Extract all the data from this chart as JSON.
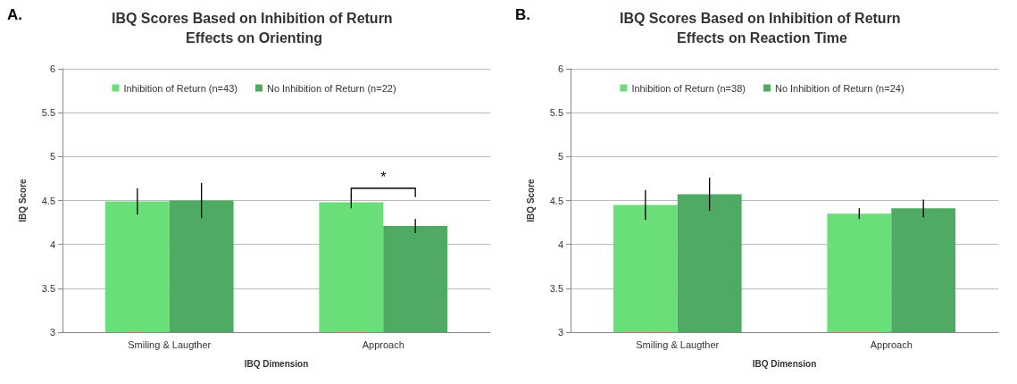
{
  "chart_data": [
    {
      "type": "bar",
      "title": "IBQ Scores Based on Inhibition of Return Effects on Orienting",
      "xlabel": "IBQ Dimension",
      "ylabel": "IBQ Score",
      "categories": [
        "Smiling & Laugther",
        "Approach"
      ],
      "series": [
        {
          "name": "Inhibition of Return (n=43)",
          "color": "#6ade78",
          "values": [
            4.49,
            4.48
          ],
          "errors": [
            0.15,
            0.07
          ]
        },
        {
          "name": "No Inhibition of Return (n=22)",
          "color": "#4fab63",
          "values": [
            4.5,
            4.21
          ],
          "errors": [
            0.2,
            0.08
          ]
        }
      ],
      "ylim": [
        3,
        6
      ],
      "yticks": [
        3,
        3.5,
        4,
        4.5,
        5,
        5.5,
        6
      ],
      "grid": "y",
      "legend": "top",
      "annotations": [
        "A.",
        "*"
      ]
    },
    {
      "type": "bar",
      "title": "IBQ Scores Based on Inhibition of Return Effects on Reaction Time",
      "xlabel": "IBQ Dimension",
      "ylabel": "IBQ Score",
      "categories": [
        "Smiling & Laugther",
        "Approach"
      ],
      "series": [
        {
          "name": "Inhibition of Return (n=38)",
          "color": "#6ade78",
          "values": [
            4.45,
            4.35
          ],
          "errors": [
            0.17,
            0.06
          ]
        },
        {
          "name": "No Inhibition of Return (n=24)",
          "color": "#4fab63",
          "values": [
            4.57,
            4.41
          ],
          "errors": [
            0.19,
            0.1
          ]
        }
      ],
      "ylim": [
        3,
        6
      ],
      "yticks": [
        3,
        3.5,
        4,
        4.5,
        5,
        5.5,
        6
      ],
      "grid": "y",
      "legend": "top",
      "annotations": [
        "B."
      ]
    }
  ]
}
